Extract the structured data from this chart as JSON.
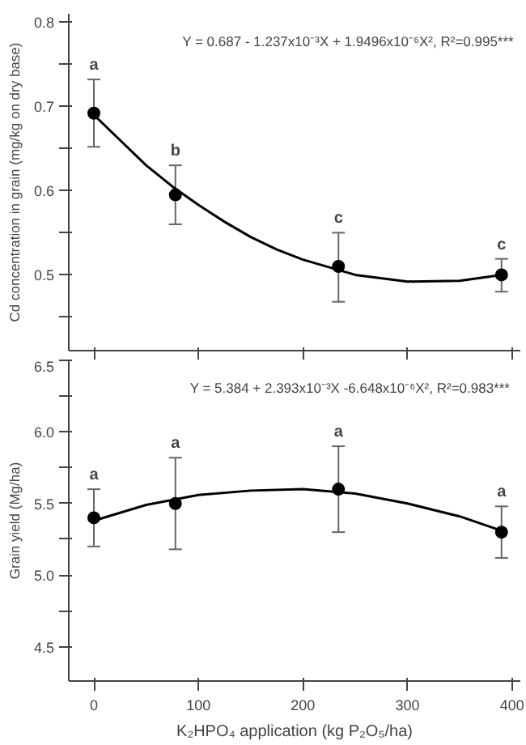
{
  "chart_data": [
    {
      "type": "scatter",
      "ylabel": "Cd concentration in grain (mg/kg on dry base)",
      "xlim": [
        -24,
        408
      ],
      "ylim": [
        0.41,
        0.81
      ],
      "xticks": [
        {
          "value": 0,
          "label": null
        },
        {
          "value": 100,
          "label": null
        },
        {
          "value": 200,
          "label": null
        },
        {
          "value": 300,
          "label": null
        },
        {
          "value": 400,
          "label": null
        }
      ],
      "yticks": [
        {
          "value": 0.45,
          "label": null
        },
        0.5,
        {
          "value": 0.55,
          "label": null
        },
        0.6,
        {
          "value": 0.65,
          "label": null
        },
        0.7,
        {
          "value": 0.75,
          "label": null
        },
        0.8
      ],
      "tick_labels": "y",
      "grid": false,
      "line_style": "solid",
      "series": [
        {
          "marker": "circle",
          "color": "#000000",
          "x": [
            0,
            78,
            234,
            390
          ],
          "values": [
            0.692,
            0.595,
            0.51,
            0.5
          ],
          "errors": [
            [
              0.652,
              0.732
            ],
            [
              0.56,
              0.63
            ],
            [
              0.468,
              0.55
            ],
            [
              0.48,
              0.519
            ]
          ]
        },
        {
          "type": "line",
          "color": "#000000",
          "x": [
            0,
            25,
            50,
            75,
            100,
            125,
            150,
            175,
            200,
            250,
            300,
            350,
            390
          ],
          "values": [
            0.69,
            0.66,
            0.63,
            0.605,
            0.583,
            0.563,
            0.545,
            0.53,
            0.518,
            0.5,
            0.492,
            0.493,
            0.5
          ]
        }
      ],
      "annotations": [
        "Y = 0.687 - 1.237x10⁻³X + 1.9496x10⁻⁶X², R²=0.995***",
        {
          "text": "a",
          "x": 0,
          "y": 0.732
        },
        {
          "text": "b",
          "x": 78,
          "y": 0.63
        },
        {
          "text": "c",
          "x": 234,
          "y": 0.55
        },
        {
          "text": "c",
          "x": 390,
          "y": 0.519
        }
      ]
    },
    {
      "type": "scatter",
      "xlabel": "K₂HPO₄ application (kg P₂O₅/ha)",
      "ylabel": "Grain yield (Mg/ha)",
      "xlim": [
        -24,
        408
      ],
      "ylim": [
        4.26,
        6.5
      ],
      "xticks": [
        0,
        100,
        200,
        300,
        400
      ],
      "yticks": [
        4.5,
        {
          "value": 4.75,
          "label": null
        },
        {
          "value": 5.0,
          "label": "5.0"
        },
        {
          "value": 5.25,
          "label": null
        },
        5.5,
        {
          "value": 5.75,
          "label": null
        },
        {
          "value": 6.0,
          "label": "6.0"
        },
        {
          "value": 6.25,
          "label": null
        },
        6.5
      ],
      "grid": false,
      "line_style": "solid",
      "series": [
        {
          "marker": "circle",
          "color": "#000000",
          "x": [
            0,
            78,
            234,
            390
          ],
          "values": [
            5.4,
            5.5,
            5.6,
            5.3
          ],
          "errors": [
            [
              5.2,
              5.6
            ],
            [
              5.18,
              5.82
            ],
            [
              5.3,
              5.9
            ],
            [
              5.12,
              5.48
            ]
          ]
        },
        {
          "type": "line",
          "color": "#000000",
          "x": [
            0,
            50,
            100,
            150,
            200,
            250,
            300,
            350,
            390
          ],
          "values": [
            5.38,
            5.49,
            5.56,
            5.59,
            5.6,
            5.57,
            5.5,
            5.41,
            5.31
          ]
        }
      ],
      "annotations": [
        "Y = 5.384 + 2.393x10⁻³X  -6.648x10⁻⁶X², R²=0.983***",
        {
          "text": "a",
          "x": 0,
          "y": 5.6
        },
        {
          "text": "a",
          "x": 78,
          "y": 5.82
        },
        {
          "text": "a",
          "x": 234,
          "y": 5.9
        },
        {
          "text": "a",
          "x": 390,
          "y": 5.48
        }
      ]
    }
  ]
}
